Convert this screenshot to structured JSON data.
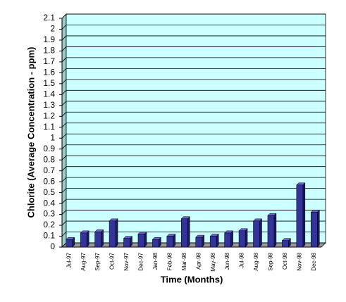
{
  "chart_data": {
    "type": "bar",
    "y_label": "Chlorite (Average Concentration - ppm)",
    "x_label": "Time (Months)",
    "categories": [
      "Jul-97",
      "Aug-97",
      "Sep-97",
      "Oct-97",
      "Nov-97",
      "Dec-97",
      "Jan-98",
      "Feb-98",
      "Mar-98",
      "Apr-98",
      "May-98",
      "Jun-98",
      "Jul-98",
      "Aug-98",
      "Sep-98",
      "Oct-98",
      "Nov-98",
      "Dec-98"
    ],
    "values": [
      0.07,
      0.13,
      0.14,
      0.24,
      0.08,
      0.12,
      0.07,
      0.1,
      0.26,
      0.09,
      0.1,
      0.13,
      0.15,
      0.24,
      0.29,
      0.06,
      0.57,
      0.32
    ],
    "color": "#333399",
    "ylim": [
      0,
      2.1
    ],
    "yticks": [
      0,
      0.1,
      0.2,
      0.3,
      0.4,
      0.5,
      0.6,
      0.7,
      0.8,
      0.9,
      1,
      1.1,
      1.2,
      1.3,
      1.4,
      1.5,
      1.6,
      1.7,
      1.8,
      1.9,
      2,
      2.1
    ],
    "grid": true
  }
}
